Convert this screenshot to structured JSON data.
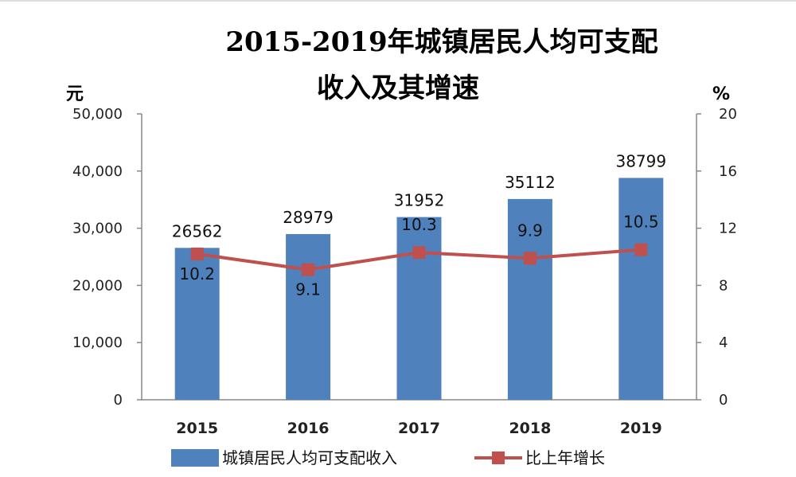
{
  "chart_data": {
    "type": "bar",
    "title_line1": "2015-2019年城镇居民人均可支配",
    "title_line2": "收入及其增速",
    "y_left_unit": "元",
    "y_right_unit": "%",
    "categories": [
      "2015",
      "2016",
      "2017",
      "2018",
      "2019"
    ],
    "ylim_left": [
      0,
      50000
    ],
    "ylim_right": [
      0,
      20
    ],
    "left_ticks": [
      "0",
      "10,000",
      "20,000",
      "30,000",
      "40,000",
      "50,000"
    ],
    "right_ticks": [
      "0",
      "4",
      "8",
      "12",
      "16",
      "20"
    ],
    "series": [
      {
        "name": "城镇居民人均可支配收入",
        "type": "bar",
        "axis": "left",
        "values": [
          26562,
          28979,
          31952,
          35112,
          38799
        ],
        "labels": [
          "26562",
          "28979",
          "31952",
          "35112",
          "38799"
        ],
        "color": "#4f81bd"
      },
      {
        "name": "比上年增长",
        "type": "line",
        "axis": "right",
        "values": [
          10.2,
          9.1,
          10.3,
          9.9,
          10.5
        ],
        "labels": [
          "10.2",
          "9.1",
          "10.3",
          "9.9",
          "10.5"
        ],
        "color": "#c0504d"
      }
    ],
    "grid": false,
    "legend_position": "bottom"
  }
}
